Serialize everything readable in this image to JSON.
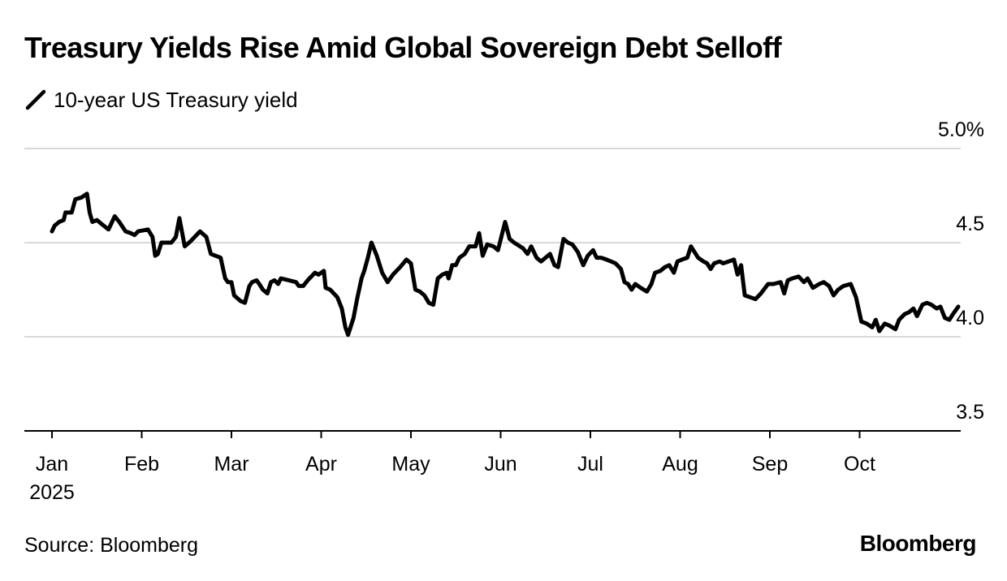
{
  "header": {
    "title": "Treasury Yields Rise Amid Global Sovereign Debt Selloff"
  },
  "footer": {
    "source": "Source: Bloomberg",
    "brand": "Bloomberg"
  },
  "chart_data": {
    "type": "line",
    "title": "Treasury Yields Rise Amid Global Sovereign Debt Selloff",
    "xlabel": "",
    "ylabel": "",
    "ylim": [
      3.5,
      5.0
    ],
    "xlim": [
      -0.3,
      10.15
    ],
    "y_ticks": [
      {
        "value": 5.0,
        "label": "5.0%"
      },
      {
        "value": 4.5,
        "label": "4.5"
      },
      {
        "value": 4.0,
        "label": "4.0"
      },
      {
        "value": 3.5,
        "label": "3.5"
      }
    ],
    "x_ticks": [
      {
        "value": 0,
        "label": "Jan",
        "sublabel": "2025"
      },
      {
        "value": 1,
        "label": "Feb"
      },
      {
        "value": 2,
        "label": "Mar"
      },
      {
        "value": 3,
        "label": "Apr"
      },
      {
        "value": 4,
        "label": "May"
      },
      {
        "value": 5,
        "label": "Jun"
      },
      {
        "value": 6,
        "label": "Jul"
      },
      {
        "value": 7,
        "label": "Aug"
      },
      {
        "value": 8,
        "label": "Sep"
      },
      {
        "value": 9,
        "label": "Oct"
      }
    ],
    "legend": {
      "placement": "top-left",
      "icon": "line-swatch-icon"
    },
    "grid": true,
    "series": [
      {
        "name": "10-year US Treasury yield",
        "color": "#000000",
        "points": [
          [
            0.0,
            4.56
          ],
          [
            0.03,
            4.59
          ],
          [
            0.08,
            4.61
          ],
          [
            0.13,
            4.62
          ],
          [
            0.15,
            4.66
          ],
          [
            0.22,
            4.66
          ],
          [
            0.26,
            4.73
          ],
          [
            0.33,
            4.74
          ],
          [
            0.39,
            4.76
          ],
          [
            0.42,
            4.66
          ],
          [
            0.45,
            4.61
          ],
          [
            0.5,
            4.62
          ],
          [
            0.55,
            4.6
          ],
          [
            0.63,
            4.57
          ],
          [
            0.7,
            4.64
          ],
          [
            0.75,
            4.61
          ],
          [
            0.82,
            4.56
          ],
          [
            0.88,
            4.55
          ],
          [
            0.92,
            4.54
          ],
          [
            0.96,
            4.56
          ],
          [
            1.07,
            4.57
          ],
          [
            1.12,
            4.53
          ],
          [
            1.15,
            4.43
          ],
          [
            1.18,
            4.44
          ],
          [
            1.22,
            4.5
          ],
          [
            1.33,
            4.5
          ],
          [
            1.38,
            4.53
          ],
          [
            1.42,
            4.63
          ],
          [
            1.48,
            4.48
          ],
          [
            1.55,
            4.51
          ],
          [
            1.65,
            4.56
          ],
          [
            1.72,
            4.53
          ],
          [
            1.77,
            4.44
          ],
          [
            1.88,
            4.42
          ],
          [
            1.93,
            4.31
          ],
          [
            1.96,
            4.29
          ],
          [
            2.0,
            4.29
          ],
          [
            2.03,
            4.22
          ],
          [
            2.1,
            4.19
          ],
          [
            2.15,
            4.18
          ],
          [
            2.2,
            4.27
          ],
          [
            2.23,
            4.29
          ],
          [
            2.28,
            4.3
          ],
          [
            2.31,
            4.28
          ],
          [
            2.35,
            4.25
          ],
          [
            2.4,
            4.23
          ],
          [
            2.44,
            4.29
          ],
          [
            2.48,
            4.3
          ],
          [
            2.52,
            4.28
          ],
          [
            2.55,
            4.31
          ],
          [
            2.64,
            4.3
          ],
          [
            2.72,
            4.29
          ],
          [
            2.75,
            4.27
          ],
          [
            2.8,
            4.27
          ],
          [
            2.85,
            4.3
          ],
          [
            2.93,
            4.34
          ],
          [
            2.97,
            4.33
          ],
          [
            3.03,
            4.35
          ],
          [
            3.05,
            4.26
          ],
          [
            3.1,
            4.25
          ],
          [
            3.18,
            4.21
          ],
          [
            3.23,
            4.15
          ],
          [
            3.27,
            4.05
          ],
          [
            3.3,
            4.01
          ],
          [
            3.36,
            4.1
          ],
          [
            3.4,
            4.2
          ],
          [
            3.45,
            4.31
          ],
          [
            3.48,
            4.35
          ],
          [
            3.52,
            4.42
          ],
          [
            3.56,
            4.5
          ],
          [
            3.62,
            4.43
          ],
          [
            3.68,
            4.34
          ],
          [
            3.74,
            4.29
          ],
          [
            3.8,
            4.33
          ],
          [
            3.88,
            4.37
          ],
          [
            3.95,
            4.41
          ],
          [
            4.0,
            4.39
          ],
          [
            4.05,
            4.25
          ],
          [
            4.1,
            4.24
          ],
          [
            4.15,
            4.22
          ],
          [
            4.2,
            4.18
          ],
          [
            4.25,
            4.17
          ],
          [
            4.3,
            4.31
          ],
          [
            4.35,
            4.33
          ],
          [
            4.4,
            4.34
          ],
          [
            4.42,
            4.31
          ],
          [
            4.46,
            4.38
          ],
          [
            4.5,
            4.38
          ],
          [
            4.54,
            4.42
          ],
          [
            4.6,
            4.44
          ],
          [
            4.65,
            4.48
          ],
          [
            4.72,
            4.48
          ],
          [
            4.76,
            4.55
          ],
          [
            4.8,
            4.43
          ],
          [
            4.85,
            4.49
          ],
          [
            4.92,
            4.48
          ],
          [
            4.97,
            4.46
          ],
          [
            5.05,
            4.61
          ],
          [
            5.1,
            4.52
          ],
          [
            5.15,
            4.5
          ],
          [
            5.25,
            4.47
          ],
          [
            5.3,
            4.44
          ],
          [
            5.34,
            4.48
          ],
          [
            5.4,
            4.42
          ],
          [
            5.45,
            4.4
          ],
          [
            5.5,
            4.42
          ],
          [
            5.55,
            4.44
          ],
          [
            5.6,
            4.38
          ],
          [
            5.64,
            4.37
          ],
          [
            5.7,
            4.52
          ],
          [
            5.75,
            4.5
          ],
          [
            5.8,
            4.49
          ],
          [
            5.86,
            4.45
          ],
          [
            5.92,
            4.38
          ],
          [
            5.97,
            4.43
          ],
          [
            6.03,
            4.46
          ],
          [
            6.07,
            4.42
          ],
          [
            6.12,
            4.42
          ],
          [
            6.18,
            4.41
          ],
          [
            6.23,
            4.4
          ],
          [
            6.28,
            4.39
          ],
          [
            6.34,
            4.36
          ],
          [
            6.38,
            4.29
          ],
          [
            6.42,
            4.28
          ],
          [
            6.46,
            4.25
          ],
          [
            6.5,
            4.28
          ],
          [
            6.56,
            4.26
          ],
          [
            6.63,
            4.24
          ],
          [
            6.68,
            4.28
          ],
          [
            6.72,
            4.34
          ],
          [
            6.78,
            4.35
          ],
          [
            6.83,
            4.37
          ],
          [
            6.88,
            4.38
          ],
          [
            6.93,
            4.34
          ],
          [
            6.97,
            4.4
          ],
          [
            7.02,
            4.41
          ],
          [
            7.08,
            4.42
          ],
          [
            7.12,
            4.48
          ],
          [
            7.16,
            4.45
          ],
          [
            7.2,
            4.42
          ],
          [
            7.26,
            4.4
          ],
          [
            7.3,
            4.39
          ],
          [
            7.34,
            4.36
          ],
          [
            7.38,
            4.39
          ],
          [
            7.44,
            4.4
          ],
          [
            7.48,
            4.39
          ],
          [
            7.54,
            4.4
          ],
          [
            7.6,
            4.41
          ],
          [
            7.64,
            4.33
          ],
          [
            7.68,
            4.38
          ],
          [
            7.72,
            4.22
          ],
          [
            7.78,
            4.21
          ],
          [
            7.84,
            4.2
          ],
          [
            7.9,
            4.23
          ],
          [
            7.98,
            4.28
          ],
          [
            8.04,
            4.28
          ],
          [
            8.12,
            4.29
          ],
          [
            8.16,
            4.23
          ],
          [
            8.2,
            4.3
          ],
          [
            8.25,
            4.31
          ],
          [
            8.32,
            4.32
          ],
          [
            8.38,
            4.29
          ],
          [
            8.42,
            4.31
          ],
          [
            8.48,
            4.26
          ],
          [
            8.55,
            4.28
          ],
          [
            8.6,
            4.29
          ],
          [
            8.66,
            4.27
          ],
          [
            8.71,
            4.22
          ],
          [
            8.76,
            4.25
          ],
          [
            8.82,
            4.27
          ],
          [
            8.9,
            4.28
          ],
          [
            8.96,
            4.21
          ],
          [
            9.02,
            4.08
          ],
          [
            9.08,
            4.07
          ],
          [
            9.14,
            4.05
          ],
          [
            9.18,
            4.09
          ],
          [
            9.22,
            4.03
          ],
          [
            9.28,
            4.07
          ],
          [
            9.33,
            4.06
          ],
          [
            9.4,
            4.04
          ],
          [
            9.44,
            4.09
          ],
          [
            9.5,
            4.12
          ],
          [
            9.55,
            4.13
          ],
          [
            9.6,
            4.15
          ],
          [
            9.64,
            4.11
          ],
          [
            9.7,
            4.17
          ],
          [
            9.75,
            4.18
          ],
          [
            9.8,
            4.17
          ],
          [
            9.86,
            4.15
          ],
          [
            9.9,
            4.16
          ],
          [
            9.95,
            4.1
          ],
          [
            10.0,
            4.09
          ],
          [
            10.04,
            4.12
          ],
          [
            10.1,
            4.16
          ]
        ]
      }
    ]
  }
}
